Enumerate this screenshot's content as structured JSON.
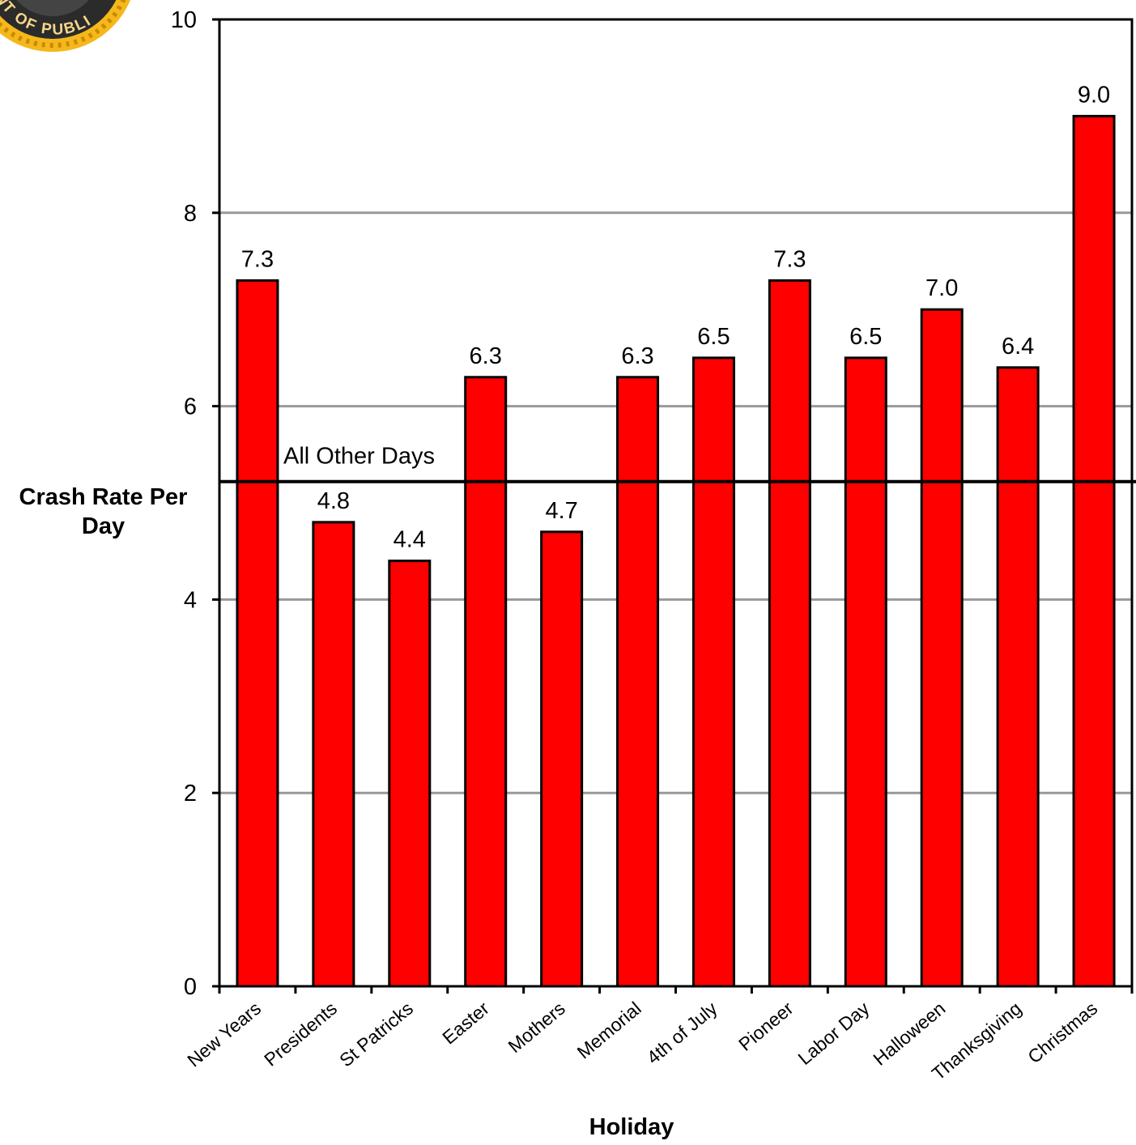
{
  "chart_data": {
    "type": "bar",
    "title": "",
    "xlabel": "Holiday",
    "ylabel": "Crash Rate Per Day",
    "ylim": [
      0,
      10
    ],
    "yticks": [
      0,
      2,
      4,
      6,
      8,
      10
    ],
    "grid": true,
    "categories": [
      "New Years",
      "Presidents",
      "St Patricks",
      "Easter",
      "Mothers",
      "Memorial",
      "4th of July",
      "Pioneer",
      "Labor Day",
      "Halloween",
      "Thanksgiving",
      "Christmas"
    ],
    "values": [
      7.3,
      4.8,
      4.4,
      6.3,
      4.7,
      6.3,
      6.5,
      7.3,
      6.5,
      7.0,
      6.4,
      9.0
    ],
    "data_labels": [
      "7.3",
      "4.8",
      "4.4",
      "6.3",
      "4.7",
      "6.3",
      "6.5",
      "7.3",
      "6.5",
      "7.0",
      "6.4",
      "9.0"
    ],
    "reference_line": {
      "label": "All Other Days",
      "value": 5.22
    },
    "bar_color": "#ff0000"
  },
  "logo": {
    "text": "NT OF PUBLI",
    "colors": {
      "ring": "#f5b81c",
      "inner": "#2b2b2b"
    }
  }
}
